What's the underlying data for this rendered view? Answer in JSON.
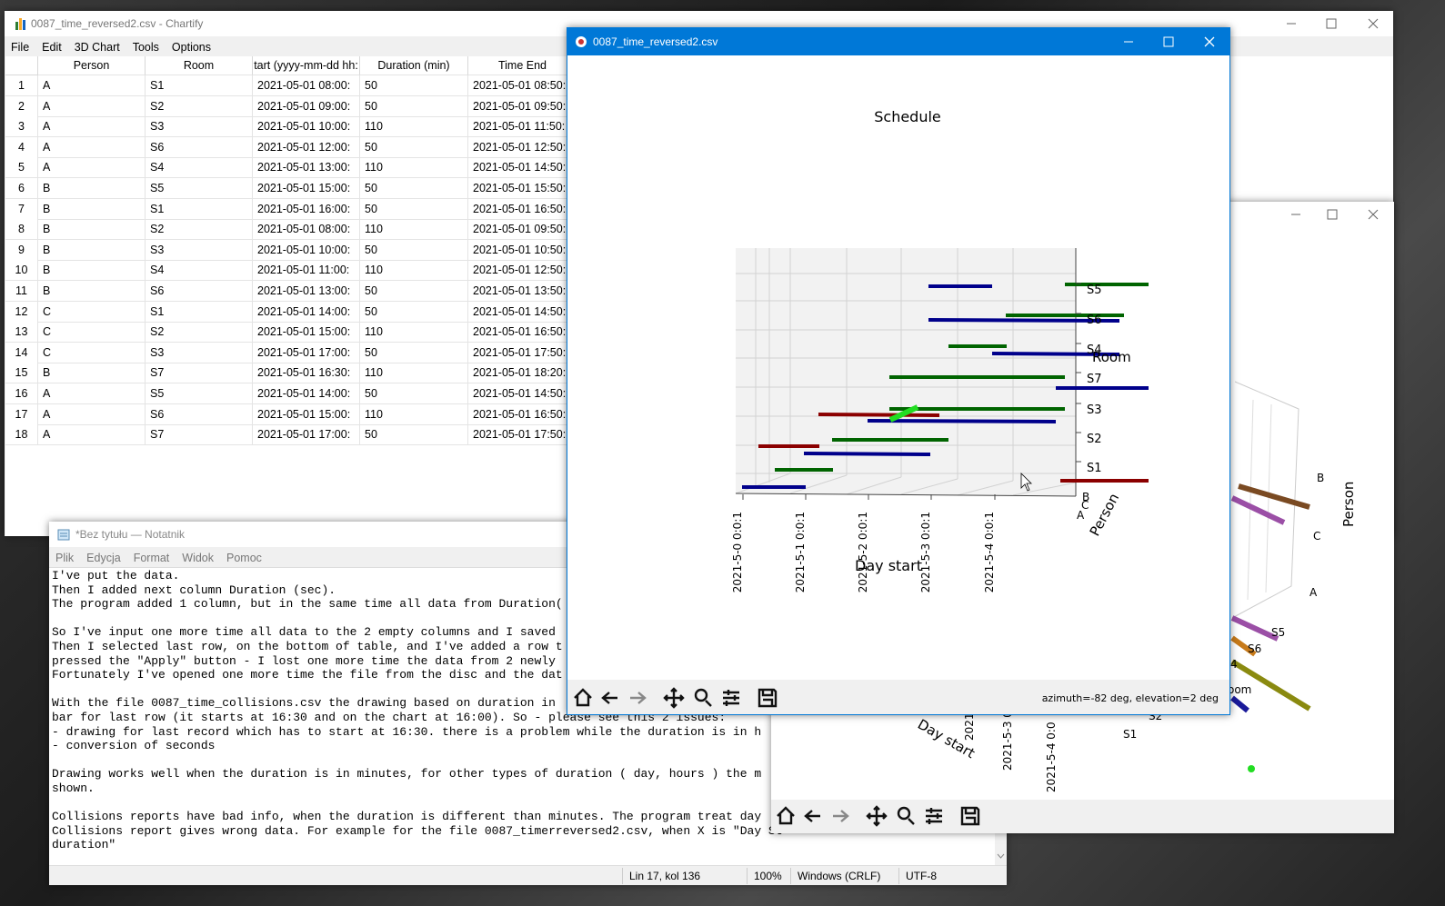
{
  "chartify": {
    "title": "0087_time_reversed2.csv - Chartify",
    "menu": [
      "File",
      "Edit",
      "3D Chart",
      "Tools",
      "Options"
    ],
    "columns": [
      "Person",
      "Room",
      "tart (yyyy-mm-dd hh:",
      "Duration (min)",
      "Time End"
    ],
    "rows": [
      [
        1,
        "A",
        "S1",
        "2021-05-01 08:00:",
        50,
        "2021-05-01 08:50:"
      ],
      [
        2,
        "A",
        "S2",
        "2021-05-01 09:00:",
        50,
        "2021-05-01 09:50:"
      ],
      [
        3,
        "A",
        "S3",
        "2021-05-01 10:00:",
        110,
        "2021-05-01 11:50:"
      ],
      [
        4,
        "A",
        "S6",
        "2021-05-01 12:00:",
        50,
        "2021-05-01 12:50:"
      ],
      [
        5,
        "A",
        "S4",
        "2021-05-01 13:00:",
        110,
        "2021-05-01 14:50:"
      ],
      [
        6,
        "B",
        "S5",
        "2021-05-01 15:00:",
        50,
        "2021-05-01 15:50:"
      ],
      [
        7,
        "B",
        "S1",
        "2021-05-01 16:00:",
        50,
        "2021-05-01 16:50:"
      ],
      [
        8,
        "B",
        "S2",
        "2021-05-01 08:00:",
        110,
        "2021-05-01 09:50:"
      ],
      [
        9,
        "B",
        "S3",
        "2021-05-01 10:00:",
        50,
        "2021-05-01 10:50:"
      ],
      [
        10,
        "B",
        "S4",
        "2021-05-01 11:00:",
        110,
        "2021-05-01 12:50:"
      ],
      [
        11,
        "B",
        "S6",
        "2021-05-01 13:00:",
        50,
        "2021-05-01 13:50:"
      ],
      [
        12,
        "C",
        "S1",
        "2021-05-01 14:00:",
        50,
        "2021-05-01 14:50:"
      ],
      [
        13,
        "C",
        "S2",
        "2021-05-01 15:00:",
        110,
        "2021-05-01 16:50:"
      ],
      [
        14,
        "C",
        "S3",
        "2021-05-01 17:00:",
        50,
        "2021-05-01 17:50:"
      ],
      [
        15,
        "B",
        "S7",
        "2021-05-01 16:30:",
        110,
        "2021-05-01 18:20:"
      ],
      [
        16,
        "A",
        "S5",
        "2021-05-01 14:00:",
        50,
        "2021-05-01 14:50:"
      ],
      [
        17,
        "A",
        "S6",
        "2021-05-01 15:00:",
        110,
        "2021-05-01 16:50:"
      ],
      [
        18,
        "A",
        "S7",
        "2021-05-01 17:00:",
        50,
        "2021-05-01 17:50:"
      ]
    ]
  },
  "notepad": {
    "title": "*Bez tytułu — Notatnik",
    "menu": [
      "Plik",
      "Edycja",
      "Format",
      "Widok",
      "Pomoc"
    ],
    "paragraphs": [
      [
        "I've put the data.",
        "Then I added next column Duration (sec).",
        "The program added 1 column, but in the same time all data from Duration("
      ],
      [
        "So I've input one more time all data to the 2 empty columns and I saved",
        "Then I selected last row, on the bottom of table, and I've added a row t",
        "pressed the \"Apply\" button - I lost one more time the data from 2 newly",
        "Fortunately I've opened one more time the file from the disc and the dat"
      ],
      [
        "With the file 0087_time_collisions.csv the drawing based on duration in",
        "bar for last row (it starts at 16:30 and on the chart at 16:00). So - please see this 2 issues:",
        "- drawing for last record which has to start at 16:30. there is a problem while the duration is in h",
        "- conversion of seconds"
      ],
      [
        "Drawing works well when the duration is in minutes, for other types of duration ( day, hours ) the m",
        "shown."
      ],
      [
        "Collisions reports have bad info, when the duration is different than minutes. The program treat day",
        "Collisions report gives wrong data. For example for the file 0087_timerreversed2.csv, when X is \"Day St",
        "duration\""
      ]
    ],
    "status": [
      "Lin 17, kol 136",
      "100%",
      "Windows (CRLF)",
      "UTF-8"
    ]
  },
  "figure": {
    "title": "0087_time_reversed2.csv",
    "chart_title": "Schedule",
    "room_ticks": [
      "S5",
      "S6",
      "S4",
      "S7",
      "S3",
      "S2",
      "S1"
    ],
    "room_label": "Room",
    "x_ticks": [
      "2021-5-0 0:0:1",
      "2021-5-1 0:0:1",
      "2021-5-2 0:0:1",
      "2021-5-3 0:0:1",
      "2021-5-4 0:0:1"
    ],
    "x_label": "Day start",
    "person_ticks": [
      "B",
      "C",
      "A"
    ],
    "person_label": "Person",
    "status": "azimuth=-82 deg, elevation=2 deg"
  },
  "figure_back": {
    "labels": [
      "B",
      "C",
      "A",
      "Person",
      "S5",
      "S6",
      "4",
      "oom",
      "S2",
      "S1",
      "Day start",
      "2021-5-3 0:0",
      "2021-5-4 0:0",
      "2021-5"
    ]
  }
}
